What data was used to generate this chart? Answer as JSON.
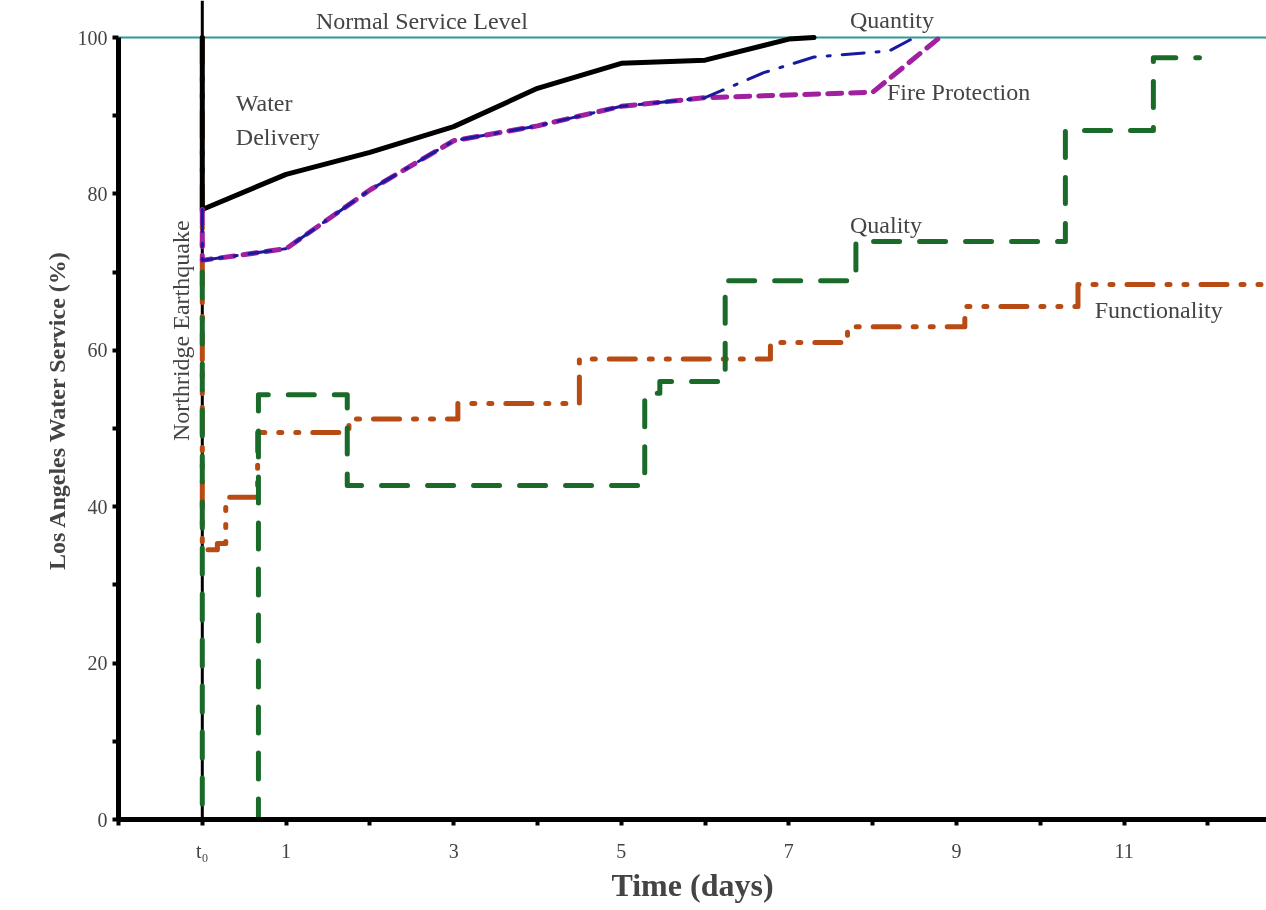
{
  "chart_data": {
    "type": "line",
    "xlabel": "Time (days)",
    "ylabel": "Los Angeles Water Service (%)",
    "xlim": [
      -1,
      12.7
    ],
    "ylim": [
      0,
      100
    ],
    "xticks": [
      {
        "value": -1,
        "label": null
      },
      {
        "value": 0,
        "label": "t₀"
      },
      1,
      {
        "value": 2,
        "label": null
      },
      3,
      {
        "value": 4,
        "label": null
      },
      5,
      {
        "value": 6,
        "label": null
      },
      7,
      {
        "value": 8,
        "label": null
      },
      9,
      {
        "value": 10,
        "label": null
      },
      11,
      {
        "value": 12,
        "label": null
      }
    ],
    "yticks": [
      0,
      {
        "value": 10,
        "label": null
      },
      20,
      {
        "value": 30,
        "label": null
      },
      40,
      {
        "value": 50,
        "label": null
      },
      60,
      {
        "value": 70,
        "label": null
      },
      80,
      {
        "value": 90,
        "label": null
      },
      100
    ],
    "grid": false,
    "series": [
      {
        "name": "Functionality",
        "color": "#b84a14",
        "line_style": "dashdotdot",
        "x": [
          0,
          0,
          0.18,
          0.18,
          0.28,
          0.28,
          0.66,
          0.66,
          1.75,
          1.75,
          3.05,
          3.05,
          4.5,
          4.5,
          6.78,
          6.78,
          7.7,
          7.7,
          9.1,
          9.1,
          10.45,
          10.45,
          12.7
        ],
        "values": [
          100,
          34.5,
          34.5,
          35.3,
          35.3,
          41.2,
          41.2,
          49.5,
          49.5,
          51.2,
          51.2,
          53.2,
          53.2,
          58.9,
          58.9,
          61,
          61,
          63,
          63,
          65.6,
          65.6,
          68.4,
          68.4
        ]
      },
      {
        "name": "Quality",
        "color": "#1a6b2a",
        "line_style": "longdash",
        "x": [
          0,
          0,
          0.67,
          0.67,
          1.73,
          1.73,
          5.28,
          5.28,
          5.46,
          5.46,
          6.24,
          6.24,
          7.8,
          7.8,
          10.3,
          10.3,
          11.35,
          11.35,
          11.9
        ],
        "values": [
          70,
          0,
          0,
          54.3,
          54.3,
          42.7,
          42.7,
          54.5,
          54.5,
          56,
          56,
          68.9,
          68.9,
          73.9,
          73.9,
          88.1,
          88.1,
          97.4,
          97.4
        ]
      },
      {
        "name": "Water\nDelivery",
        "color": "#000000",
        "line_style": "solid",
        "x": [
          0,
          0,
          1,
          2,
          3,
          4,
          5,
          6,
          7,
          7.3
        ],
        "values": [
          100,
          78,
          82.5,
          85.3,
          88.6,
          93.5,
          96.7,
          97.1,
          99.8,
          100
        ]
      },
      {
        "name": "Fire Protection",
        "color": "#a020a0",
        "line_style": "dashed",
        "x": [
          0,
          0,
          1,
          2,
          3,
          4,
          5,
          6,
          8,
          8.8
        ],
        "values": [
          78,
          71.5,
          73,
          80.5,
          86.8,
          88.7,
          91.2,
          92.3,
          93,
          100
        ]
      },
      {
        "name": "Quantity",
        "color": "#1a1aa0",
        "line_style": "dashdot",
        "x": [
          0,
          0,
          1,
          2,
          3,
          4,
          5,
          6,
          6.7,
          7.3,
          8.2,
          8.5
        ],
        "values": [
          78,
          71.5,
          73,
          80.5,
          86.8,
          88.7,
          91.2,
          92.3,
          95.5,
          97.5,
          98.3,
          100
        ]
      }
    ],
    "ref_lines": [
      {
        "axis": "y",
        "value": 100,
        "label": "Normal Service Level",
        "color": "#2a9a9a"
      },
      {
        "axis": "x",
        "value": 0,
        "label": "Northridge Earthquake",
        "color": "#000000"
      }
    ]
  }
}
